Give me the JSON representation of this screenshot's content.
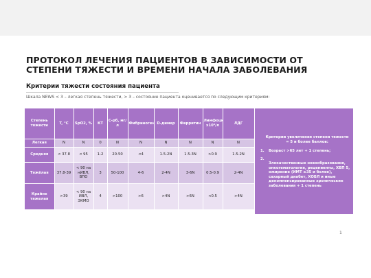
{
  "title": {
    "line1": "ПРОТОКОЛ ЛЕЧЕНИЯ ПАЦИЕНТОВ В ЗАВИСИМОСТИ ОТ",
    "line2": "СТЕПЕНИ ТЯЖЕСТИ И ВРЕМЕНИ НАЧАЛА ЗАБОЛЕВАНИЯ"
  },
  "subtitle": "Критерии тяжести состояния пациента",
  "scale_text": "Шкала NEWS < 3 – легкая степень тяжести, > 3 – состояние пациента оценивается по следующим критериям:",
  "table": {
    "headers": [
      "Степень тяжести",
      "T, °C",
      "SpO2, %",
      "КТ",
      "С-рб, мг/л",
      "Фибриноген",
      "D-димер",
      "Ферритин",
      "Лимфоциты, х10⁹/л",
      "ЛДГ"
    ],
    "rows": [
      [
        "Легкая",
        "N",
        "N",
        "0",
        "N",
        "N",
        "N",
        "N",
        "N",
        "N"
      ],
      [
        "Средняя",
        "< 37.8",
        "< 95",
        "1-2",
        "20-50",
        "<4",
        "1.5-2N",
        "1.5-3N",
        ">0.9",
        "1.5-2N"
      ],
      [
        "Тяжёлая",
        "37.8-39",
        "< 90 на нИВЛ, ВПО",
        "3",
        "50-100",
        "4-6",
        "2-4N",
        "3-6N",
        "0.5-0.9",
        "2-4N"
      ],
      [
        "Крайне тяжелая",
        ">39",
        "< 90 на ИВЛ, ЭКМО",
        "4",
        ">100",
        ">6",
        ">4N",
        ">6N",
        "<0.5",
        ">4N"
      ]
    ]
  },
  "criteria": {
    "title": "Критерии увеличения степени тяжести = 5 и более баллов:",
    "item1_num": "1.",
    "item1": "Возраст >65 лет + 1 степень;",
    "item2_num": "2.",
    "item2": "Злокачественные новообразования, онкогематология, рецепиенты, ХБП 5, ожирение (ИМТ ≥35 и более), сахарный диабет, ХОБЛ и иные декомпенсированные хронические заболевания + 1 степень"
  },
  "page_number": "1",
  "colors": {
    "accent_purple": "#a673c7",
    "cell_dark": "#d6c4e4",
    "cell_light": "#ebe1f2"
  }
}
